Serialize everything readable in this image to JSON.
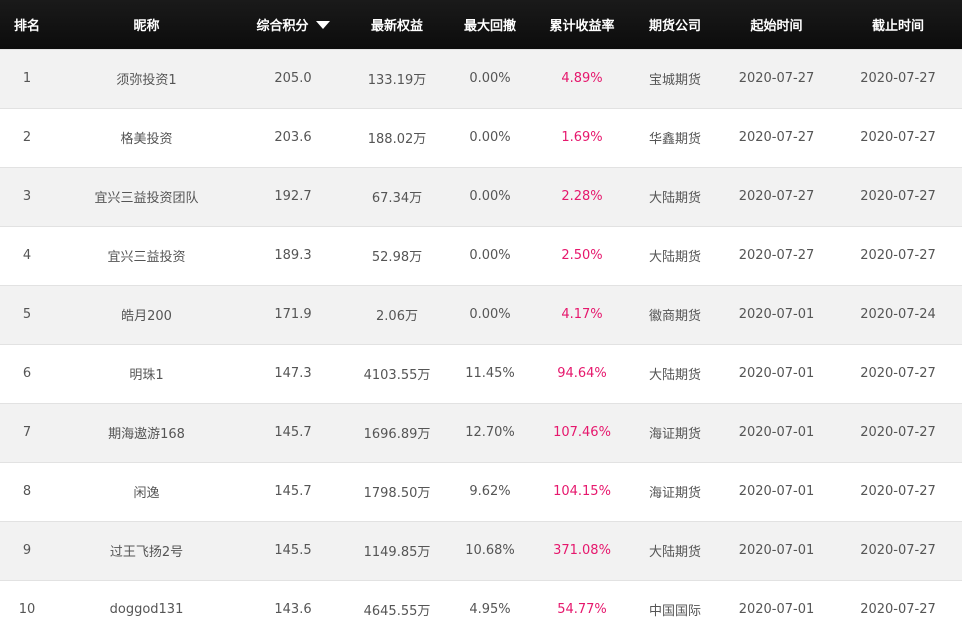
{
  "headers": {
    "rank": "排名",
    "nickname": "昵称",
    "score": "综合积分",
    "equity": "最新权益",
    "drawdown": "最大回撤",
    "cum_yield": "累计收益率",
    "company": "期货公司",
    "start": "起始时间",
    "end": "截止时间"
  },
  "sort_icon": "caret-down-icon",
  "colors": {
    "header_bg": "#111111",
    "yield_text": "#e6186d",
    "row_alt": "#f2f2f2"
  },
  "rows": [
    {
      "rank": "1",
      "nickname": "须弥投资1",
      "score": "205.0",
      "equity": "133.19万",
      "drawdown": "0.00%",
      "cum_yield": "4.89%",
      "company": "宝城期货",
      "start": "2020-07-27",
      "end": "2020-07-27"
    },
    {
      "rank": "2",
      "nickname": "格美投资",
      "score": "203.6",
      "equity": "188.02万",
      "drawdown": "0.00%",
      "cum_yield": "1.69%",
      "company": "华鑫期货",
      "start": "2020-07-27",
      "end": "2020-07-27"
    },
    {
      "rank": "3",
      "nickname": "宜兴三益投资团队",
      "score": "192.7",
      "equity": "67.34万",
      "drawdown": "0.00%",
      "cum_yield": "2.28%",
      "company": "大陆期货",
      "start": "2020-07-27",
      "end": "2020-07-27"
    },
    {
      "rank": "4",
      "nickname": "宜兴三益投资",
      "score": "189.3",
      "equity": "52.98万",
      "drawdown": "0.00%",
      "cum_yield": "2.50%",
      "company": "大陆期货",
      "start": "2020-07-27",
      "end": "2020-07-27"
    },
    {
      "rank": "5",
      "nickname": "皓月200",
      "score": "171.9",
      "equity": "2.06万",
      "drawdown": "0.00%",
      "cum_yield": "4.17%",
      "company": "徽商期货",
      "start": "2020-07-01",
      "end": "2020-07-24"
    },
    {
      "rank": "6",
      "nickname": "明珠1",
      "score": "147.3",
      "equity": "4103.55万",
      "drawdown": "11.45%",
      "cum_yield": "94.64%",
      "company": "大陆期货",
      "start": "2020-07-01",
      "end": "2020-07-27"
    },
    {
      "rank": "7",
      "nickname": "期海遨游168",
      "score": "145.7",
      "equity": "1696.89万",
      "drawdown": "12.70%",
      "cum_yield": "107.46%",
      "company": "海证期货",
      "start": "2020-07-01",
      "end": "2020-07-27"
    },
    {
      "rank": "8",
      "nickname": "闲逸",
      "score": "145.7",
      "equity": "1798.50万",
      "drawdown": "9.62%",
      "cum_yield": "104.15%",
      "company": "海证期货",
      "start": "2020-07-01",
      "end": "2020-07-27"
    },
    {
      "rank": "9",
      "nickname": "过王飞扬2号",
      "score": "145.5",
      "equity": "1149.85万",
      "drawdown": "10.68%",
      "cum_yield": "371.08%",
      "company": "大陆期货",
      "start": "2020-07-01",
      "end": "2020-07-27"
    },
    {
      "rank": "10",
      "nickname": "doggod131",
      "score": "143.6",
      "equity": "4645.55万",
      "drawdown": "4.95%",
      "cum_yield": "54.77%",
      "company": "中国国际",
      "start": "2020-07-01",
      "end": "2020-07-27"
    }
  ]
}
